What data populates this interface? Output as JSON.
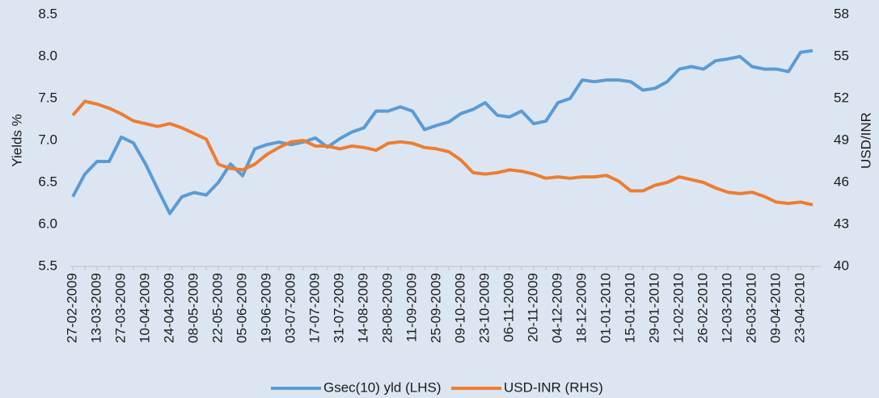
{
  "chart_data": {
    "type": "line",
    "y_label": "Yields %",
    "y2_label": "USD/INR",
    "categories": [
      "27-02-2009",
      null,
      "13-03-2009",
      null,
      "27-03-2009",
      null,
      "10-04-2009",
      null,
      "24-04-2009",
      null,
      "08-05-2009",
      null,
      "22-05-2009",
      null,
      "05-06-2009",
      null,
      "19-06-2009",
      null,
      "03-07-2009",
      null,
      "17-07-2009",
      null,
      "31-07-2009",
      null,
      "14-08-2009",
      null,
      "28-08-2009",
      null,
      "11-09-2009",
      null,
      "25-09-2009",
      null,
      "09-10-2009",
      null,
      "23-10-2009",
      null,
      "06-11-2009",
      null,
      "20-11-2009",
      null,
      "04-12-2009",
      null,
      "18-12-2009",
      null,
      "01-01-2010",
      null,
      "15-01-2010",
      null,
      "29-01-2010",
      null,
      "12-02-2010",
      null,
      "26-02-2010",
      null,
      "12-03-2010",
      null,
      "26-03-2010",
      null,
      "09-04-2010",
      null,
      "23-04-2010",
      null
    ],
    "series": [
      {
        "name": "Gsec(10) yld (LHS)",
        "color": "#5b9bd5",
        "axis": "y",
        "values": [
          6.33,
          6.6,
          6.75,
          6.75,
          7.04,
          6.97,
          6.72,
          6.42,
          6.13,
          6.33,
          6.38,
          6.35,
          6.5,
          6.72,
          6.58,
          6.9,
          6.95,
          6.98,
          6.95,
          6.98,
          7.03,
          6.92,
          7.02,
          7.1,
          7.15,
          7.35,
          7.35,
          7.4,
          7.35,
          7.13,
          7.18,
          7.22,
          7.32,
          7.37,
          7.45,
          7.3,
          7.28,
          7.35,
          7.2,
          7.23,
          7.45,
          7.5,
          7.72,
          7.7,
          7.72,
          7.72,
          7.7,
          7.6,
          7.62,
          7.7,
          7.85,
          7.88,
          7.85,
          7.95,
          7.97,
          8.0,
          7.88,
          7.85,
          7.85,
          7.82,
          8.05,
          8.07
        ]
      },
      {
        "name": "USD-INR (RHS)",
        "color": "#ed7d31",
        "axis": "y2",
        "values": [
          50.8,
          51.8,
          51.6,
          51.3,
          50.9,
          50.4,
          50.2,
          50.0,
          50.2,
          49.9,
          49.5,
          49.1,
          47.3,
          47.0,
          46.9,
          47.3,
          48.0,
          48.5,
          48.9,
          49.0,
          48.6,
          48.6,
          48.4,
          48.6,
          48.5,
          48.3,
          48.8,
          48.9,
          48.8,
          48.5,
          48.4,
          48.2,
          47.6,
          46.7,
          46.6,
          46.7,
          46.9,
          46.8,
          46.6,
          46.3,
          46.4,
          46.3,
          46.4,
          46.4,
          46.5,
          46.1,
          45.4,
          45.4,
          45.8,
          46.0,
          46.4,
          46.2,
          46.0,
          45.6,
          45.3,
          45.2,
          45.3,
          45.0,
          44.6,
          44.5,
          44.6,
          44.4
        ]
      }
    ],
    "ylim": [
      5.5,
      8.5
    ],
    "yticks": [
      5.5,
      {
        "value": 6.0,
        "label": "6.0"
      },
      6.5,
      {
        "value": 7.0,
        "label": "7.0"
      },
      7.5,
      {
        "value": 8.0,
        "label": "8.0"
      },
      8.5
    ],
    "y2lim": [
      40,
      58
    ],
    "y2ticks": [
      40,
      43,
      46,
      49,
      52,
      55,
      58
    ],
    "grid": false,
    "legend": "bottom"
  }
}
